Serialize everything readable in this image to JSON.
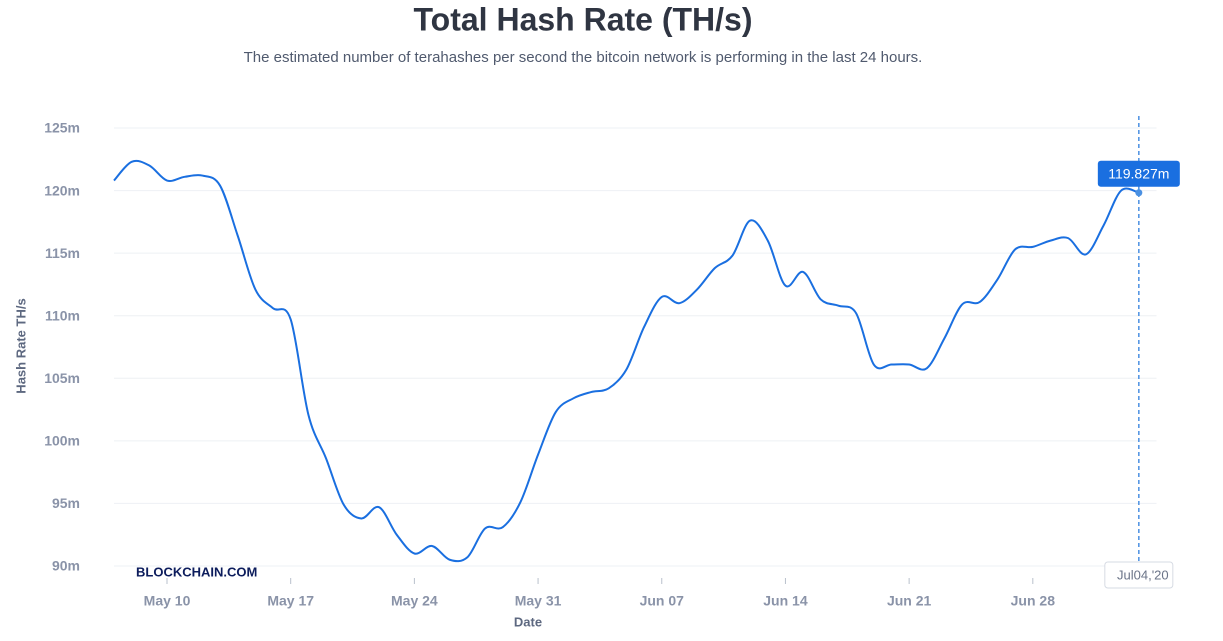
{
  "chart_data": {
    "type": "line",
    "title": "Total Hash Rate (TH/s)",
    "subtitle": "The estimated number of terahashes per second the bitcoin network is performing in the last 24 hours.",
    "y_label": "Hash Rate TH/s",
    "x_label": "Date",
    "watermark": "BLOCKCHAIN.COM",
    "x": [
      "2020-05-07",
      "2020-05-08",
      "2020-05-09",
      "2020-05-10",
      "2020-05-11",
      "2020-05-12",
      "2020-05-13",
      "2020-05-14",
      "2020-05-15",
      "2020-05-16",
      "2020-05-17",
      "2020-05-18",
      "2020-05-19",
      "2020-05-20",
      "2020-05-21",
      "2020-05-22",
      "2020-05-23",
      "2020-05-24",
      "2020-05-25",
      "2020-05-26",
      "2020-05-27",
      "2020-05-28",
      "2020-05-29",
      "2020-05-30",
      "2020-05-31",
      "2020-06-01",
      "2020-06-02",
      "2020-06-03",
      "2020-06-04",
      "2020-06-05",
      "2020-06-06",
      "2020-06-07",
      "2020-06-08",
      "2020-06-09",
      "2020-06-10",
      "2020-06-11",
      "2020-06-12",
      "2020-06-13",
      "2020-06-14",
      "2020-06-15",
      "2020-06-16",
      "2020-06-17",
      "2020-06-18",
      "2020-06-19",
      "2020-06-20",
      "2020-06-21",
      "2020-06-22",
      "2020-06-23",
      "2020-06-24",
      "2020-06-25",
      "2020-06-26",
      "2020-06-27",
      "2020-06-28",
      "2020-06-29",
      "2020-06-30",
      "2020-07-01",
      "2020-07-02",
      "2020-07-03",
      "2020-07-04"
    ],
    "series": [
      {
        "name": "Hash Rate",
        "color": "#1a6fe0",
        "values": [
          120.8,
          122.3,
          122.0,
          120.8,
          121.1,
          121.2,
          120.4,
          116.4,
          112.1,
          110.6,
          109.7,
          102.1,
          98.6,
          94.9,
          93.8,
          94.7,
          92.5,
          91.0,
          91.6,
          90.5,
          90.7,
          93.0,
          93.1,
          95.1,
          98.9,
          102.3,
          103.4,
          103.9,
          104.2,
          105.7,
          109.1,
          111.5,
          111.0,
          112.1,
          113.8,
          114.8,
          117.6,
          116.0,
          112.4,
          113.5,
          111.3,
          110.8,
          110.2,
          106.1,
          106.1,
          106.1,
          105.8,
          108.2,
          110.9,
          111.1,
          112.9,
          115.3,
          115.5,
          116.0,
          116.2,
          114.9,
          117.2,
          120.0,
          119.827
        ]
      }
    ],
    "crosshair": {
      "x": "2020-07-04",
      "x_label": "Jul04,'20",
      "value_label": "119.827m"
    },
    "xlim": [
      "2020-05-07",
      "2020-07-05"
    ],
    "xticks": [
      {
        "value": "2020-05-10",
        "label": "May 10"
      },
      {
        "value": "2020-05-17",
        "label": "May 17"
      },
      {
        "value": "2020-05-24",
        "label": "May 24"
      },
      {
        "value": "2020-05-31",
        "label": "May 31"
      },
      {
        "value": "2020-06-07",
        "label": "Jun 07"
      },
      {
        "value": "2020-06-14",
        "label": "Jun 14"
      },
      {
        "value": "2020-06-21",
        "label": "Jun 21"
      },
      {
        "value": "2020-06-28",
        "label": "Jun 28"
      }
    ],
    "ylim": [
      90,
      125
    ],
    "yticks": [
      {
        "value": 90,
        "label": "90m"
      },
      {
        "value": 95,
        "label": "95m"
      },
      {
        "value": 100,
        "label": "100m"
      },
      {
        "value": 105,
        "label": "105m"
      },
      {
        "value": 110,
        "label": "110m"
      },
      {
        "value": 115,
        "label": "115m"
      },
      {
        "value": 120,
        "label": "120m"
      },
      {
        "value": 125,
        "label": "125m"
      }
    ],
    "grid": true
  }
}
